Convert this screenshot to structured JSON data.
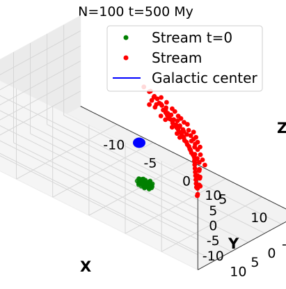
{
  "colors": {
    "stream_t0": "#008000",
    "stream": "#ff0000",
    "center": "#0000ff"
  },
  "chart_data": {
    "type": "scatter",
    "projection": "3d",
    "title": "N=100 t=500 My",
    "xlabel": "X",
    "ylabel": "Y",
    "zlabel": "Z",
    "xticks": [
      "-10",
      "-5",
      "0",
      "5",
      "10"
    ],
    "yticks": [
      "-10",
      "-5",
      "0",
      "5",
      "10"
    ],
    "zticks": [
      "-10",
      "-5",
      "0",
      "5",
      "10"
    ],
    "xlim": [
      -15,
      15
    ],
    "ylim": [
      -15,
      15
    ],
    "zlim": [
      -15,
      15
    ],
    "grid": true,
    "legend_position": "top-right",
    "legend": [
      {
        "label": "Stream t=0",
        "marker": "dot",
        "color": "#008000"
      },
      {
        "label": "Stream",
        "marker": "dot",
        "color": "#ff0000"
      },
      {
        "label": "Galactic center",
        "marker": "line",
        "color": "#0000ff"
      }
    ],
    "center": {
      "x": 0,
      "y": 0,
      "z": 0
    },
    "series": [
      {
        "name": "Stream t=0",
        "color": "#008000",
        "cluster_center": {
          "x": 5,
          "y": 9,
          "z": -2
        },
        "points": [
          [
            5.0,
            9.0,
            -2.0
          ],
          [
            4.5,
            8.6,
            -1.6
          ],
          [
            5.6,
            9.4,
            -2.4
          ],
          [
            4.8,
            9.8,
            -1.9
          ],
          [
            5.3,
            8.3,
            -2.2
          ],
          [
            4.2,
            9.2,
            -2.6
          ],
          [
            5.8,
            8.9,
            -1.7
          ],
          [
            5.1,
            9.6,
            -2.8
          ],
          [
            4.6,
            8.1,
            -2.0
          ],
          [
            5.5,
            10.0,
            -1.5
          ],
          [
            4.0,
            8.8,
            -1.8
          ],
          [
            6.0,
            9.3,
            -2.1
          ],
          [
            4.9,
            8.4,
            -2.7
          ],
          [
            5.4,
            9.1,
            -1.3
          ],
          [
            4.4,
            9.7,
            -2.3
          ],
          [
            5.7,
            8.5,
            -2.5
          ],
          [
            4.7,
            9.4,
            -1.4
          ],
          [
            5.2,
            8.7,
            -1.9
          ],
          [
            4.3,
            8.5,
            -2.2
          ],
          [
            5.9,
            9.8,
            -2.0
          ],
          [
            5.0,
            10.2,
            -2.2
          ],
          [
            4.6,
            9.0,
            -1.1
          ],
          [
            5.3,
            9.9,
            -1.8
          ],
          [
            4.1,
            9.5,
            -2.0
          ],
          [
            5.6,
            8.2,
            -1.9
          ],
          [
            4.9,
            9.3,
            -2.9
          ],
          [
            5.2,
            8.0,
            -1.6
          ],
          [
            4.5,
            9.9,
            -2.5
          ],
          [
            5.8,
            9.6,
            -2.6
          ],
          [
            4.8,
            8.7,
            -1.5
          ],
          [
            5.1,
            9.2,
            -3.0
          ],
          [
            4.4,
            8.3,
            -1.7
          ],
          [
            5.4,
            10.1,
            -2.4
          ],
          [
            4.7,
            8.9,
            -2.6
          ],
          [
            5.6,
            9.0,
            -1.2
          ],
          [
            4.2,
            9.0,
            -1.5
          ],
          [
            5.0,
            8.6,
            -2.8
          ],
          [
            5.5,
            9.5,
            -2.2
          ],
          [
            4.6,
            10.0,
            -1.8
          ],
          [
            5.3,
            8.4,
            -1.4
          ]
        ]
      },
      {
        "name": "Stream",
        "color": "#ff0000",
        "points": [
          [
            -3.5,
            -13.0,
            2.5
          ],
          [
            -4.5,
            -12.8,
            3.8
          ],
          [
            -3.0,
            -12.5,
            2.0
          ],
          [
            -4.0,
            -13.2,
            2.6
          ],
          [
            -3.8,
            -12.0,
            2.2
          ],
          [
            -2.0,
            -11.5,
            1.5
          ],
          [
            -1.2,
            -11.0,
            1.0
          ],
          [
            -2.5,
            -12.2,
            2.0
          ],
          [
            -1.8,
            -11.8,
            1.6
          ],
          [
            -0.6,
            -10.5,
            0.8
          ],
          [
            0.0,
            -10.0,
            0.5
          ],
          [
            0.8,
            -9.5,
            0.2
          ],
          [
            1.5,
            -8.8,
            0.0
          ],
          [
            2.2,
            -8.2,
            -0.2
          ],
          [
            2.8,
            -7.5,
            -0.4
          ],
          [
            3.5,
            -6.8,
            -0.5
          ],
          [
            4.2,
            -6.0,
            -0.6
          ],
          [
            4.8,
            -5.2,
            -0.7
          ],
          [
            5.5,
            -4.5,
            -0.8
          ],
          [
            6.0,
            -3.5,
            -0.9
          ],
          [
            6.5,
            -2.5,
            -1.0
          ],
          [
            7.0,
            -1.5,
            -1.0
          ],
          [
            7.5,
            -0.5,
            -1.0
          ],
          [
            8.0,
            0.5,
            -1.0
          ],
          [
            8.5,
            1.5,
            -1.1
          ],
          [
            9.0,
            2.5,
            -1.2
          ],
          [
            9.5,
            3.5,
            -1.2
          ],
          [
            -2.8,
            -12.6,
            1.8
          ],
          [
            -1.5,
            -11.2,
            1.4
          ],
          [
            -0.3,
            -10.4,
            0.9
          ],
          [
            0.5,
            -9.9,
            0.6
          ],
          [
            1.1,
            -9.2,
            0.3
          ],
          [
            1.8,
            -8.6,
            0.1
          ],
          [
            2.5,
            -7.9,
            -0.1
          ],
          [
            3.2,
            -7.2,
            -0.3
          ],
          [
            3.9,
            -6.4,
            -0.4
          ],
          [
            4.5,
            -5.6,
            -0.5
          ],
          [
            5.2,
            -4.8,
            -0.6
          ],
          [
            5.8,
            -4.0,
            -0.7
          ],
          [
            6.3,
            -3.0,
            -0.8
          ],
          [
            0.3,
            -10.8,
            1.1
          ],
          [
            1.0,
            -10.0,
            0.8
          ],
          [
            1.6,
            -9.6,
            0.5
          ],
          [
            -0.9,
            -11.5,
            1.2
          ],
          [
            0.2,
            -9.4,
            -0.3
          ],
          [
            1.3,
            -8.5,
            -0.5
          ],
          [
            2.0,
            -9.0,
            0.6
          ],
          [
            -1.0,
            -10.0,
            0.4
          ],
          [
            0.7,
            -10.6,
            -0.2
          ],
          [
            1.9,
            -8.0,
            -0.8
          ],
          [
            -3.2,
            -13.5,
            3.0
          ],
          [
            -4.2,
            -12.5,
            4.5
          ],
          [
            -3.6,
            -12.2,
            3.4
          ],
          [
            -2.2,
            -12.8,
            1.2
          ],
          [
            -1.6,
            -12.0,
            0.6
          ],
          [
            -0.4,
            -11.2,
            0.4
          ],
          [
            0.9,
            -9.0,
            1.2
          ],
          [
            2.6,
            -8.6,
            0.7
          ],
          [
            3.6,
            -7.8,
            0.2
          ],
          [
            4.6,
            -6.6,
            0.1
          ],
          [
            5.0,
            -5.8,
            -1.3
          ],
          [
            5.7,
            -5.0,
            -1.4
          ],
          [
            6.4,
            -4.0,
            -1.2
          ],
          [
            6.8,
            -3.2,
            -0.3
          ],
          [
            7.2,
            -2.4,
            -1.6
          ],
          [
            7.8,
            -1.0,
            -0.5
          ],
          [
            8.3,
            -0.2,
            -1.5
          ],
          [
            8.8,
            1.0,
            -0.6
          ],
          [
            9.2,
            2.0,
            -1.7
          ],
          [
            9.8,
            3.0,
            -0.8
          ],
          [
            10.2,
            4.5,
            0.3
          ],
          [
            10.6,
            5.5,
            -1.0
          ],
          [
            11.0,
            6.5,
            -0.4
          ],
          [
            11.5,
            7.5,
            7.5
          ],
          [
            10.8,
            6.0,
            1.5
          ],
          [
            -4.8,
            -11.8,
            5.6
          ],
          [
            -3.9,
            -11.5,
            1.0
          ],
          [
            -2.7,
            -11.0,
            2.8
          ],
          [
            -1.9,
            -10.6,
            0.2
          ],
          [
            -0.8,
            -12.4,
            1.9
          ],
          [
            0.4,
            -11.6,
            1.5
          ],
          [
            1.2,
            -10.8,
            1.7
          ],
          [
            2.3,
            -9.8,
            1.0
          ],
          [
            3.0,
            -8.9,
            0.6
          ],
          [
            3.8,
            -8.0,
            0.9
          ],
          [
            4.4,
            -7.2,
            0.5
          ],
          [
            5.1,
            -6.4,
            0.0
          ],
          [
            5.9,
            -5.5,
            -0.2
          ],
          [
            6.6,
            -4.6,
            -0.5
          ],
          [
            7.3,
            -3.8,
            -0.9
          ],
          [
            -2.4,
            -13.4,
            2.4
          ],
          [
            -1.4,
            -12.9,
            1.8
          ],
          [
            -0.2,
            -12.1,
            1.3
          ],
          [
            1.4,
            -11.4,
            0.9
          ],
          [
            2.7,
            -10.4,
            0.5
          ],
          [
            3.4,
            -9.6,
            0.1
          ],
          [
            4.0,
            -8.8,
            -0.3
          ],
          [
            4.7,
            -8.0,
            -0.6
          ],
          [
            -3.3,
            -11.9,
            0.6
          ],
          [
            -0.5,
            -9.8,
            1.6
          ]
        ]
      }
    ]
  }
}
